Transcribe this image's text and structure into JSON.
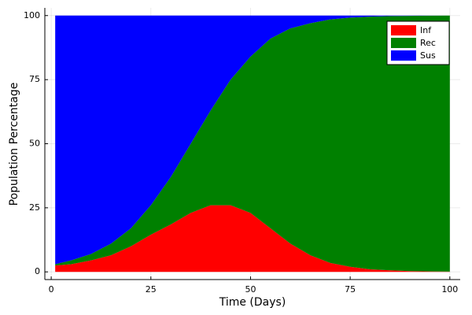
{
  "chart_data": {
    "type": "stacked_area",
    "x_label": "Time (Days)",
    "y_label": "Population Percentage",
    "x": [
      1,
      5,
      10,
      15,
      20,
      25,
      30,
      35,
      40,
      45,
      50,
      55,
      60,
      65,
      70,
      75,
      80,
      85,
      90,
      95,
      100
    ],
    "series": [
      {
        "name": "Inf",
        "color": "#ff0000",
        "values": [
          2.5,
          3,
          4.5,
          6.5,
          10,
          14.5,
          18.5,
          23,
          26,
          26,
          23,
          17,
          11,
          6.5,
          3.5,
          2,
          1,
          0.6,
          0.3,
          0.2,
          0.1
        ]
      },
      {
        "name": "Rec",
        "color": "#008000",
        "values": [
          0.5,
          1.5,
          2.5,
          4.5,
          7,
          11.5,
          18.5,
          27,
          37,
          49,
          61,
          74,
          84,
          90.5,
          95,
          97.2,
          98.6,
          99.2,
          99.6,
          99.75,
          99.9
        ]
      },
      {
        "name": "Sus",
        "color": "#0000ff",
        "values": [
          97,
          95.5,
          93,
          89,
          83,
          74,
          63,
          50,
          37,
          25,
          16,
          9,
          5,
          3,
          1.5,
          0.8,
          0.4,
          0.2,
          0.1,
          0.05,
          0
        ]
      }
    ],
    "xlim": [
      -1.6,
      102.6
    ],
    "ylim": [
      -3,
      103
    ],
    "xticks": [
      0,
      25,
      50,
      75,
      100
    ],
    "yticks": [
      0,
      25,
      50,
      75,
      100
    ],
    "grid": true,
    "legend": "top-right"
  }
}
